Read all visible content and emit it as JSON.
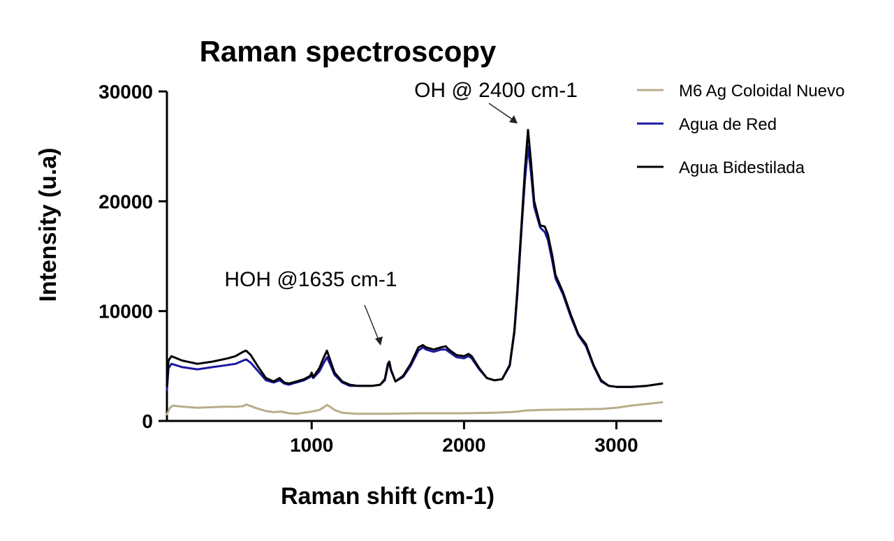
{
  "chart_data": {
    "type": "line",
    "title": "Raman spectroscopy",
    "xlabel": "Raman shift (cm-1)",
    "ylabel": "Intensity (u.a)",
    "xlim": [
      50,
      3300
    ],
    "ylim": [
      0,
      30000
    ],
    "xticks": [
      1000,
      2000,
      3000
    ],
    "xtick_labels": [
      "1000",
      "2000",
      "3000"
    ],
    "yticks": [
      0,
      10000,
      20000,
      30000
    ],
    "ytick_labels": [
      "0",
      "10000",
      "20000",
      "30000"
    ],
    "grid": false,
    "legend_position": "right",
    "series": [
      {
        "name": "M6 Ag Coloidal Nuevo",
        "color": "#b8ad8a",
        "x": [
          50,
          70,
          90,
          150,
          250,
          350,
          450,
          500,
          550,
          570,
          600,
          650,
          700,
          750,
          800,
          850,
          900,
          950,
          1000,
          1050,
          1080,
          1100,
          1120,
          1150,
          1200,
          1300,
          1500,
          1700,
          2000,
          2200,
          2300,
          2350,
          2400,
          2500,
          2700,
          2900,
          3000,
          3100,
          3200,
          3300
        ],
        "y": [
          600,
          1200,
          1400,
          1300,
          1200,
          1250,
          1300,
          1280,
          1350,
          1500,
          1350,
          1100,
          900,
          800,
          850,
          700,
          650,
          750,
          850,
          1000,
          1250,
          1450,
          1300,
          1000,
          750,
          650,
          650,
          700,
          700,
          750,
          800,
          850,
          950,
          1000,
          1050,
          1100,
          1200,
          1400,
          1550,
          1700
        ]
      },
      {
        "name": "Agua de Red",
        "color": "#1a1aa0",
        "x": [
          50,
          60,
          80,
          150,
          250,
          350,
          450,
          500,
          550,
          570,
          600,
          650,
          700,
          750,
          790,
          820,
          850,
          900,
          950,
          990,
          1000,
          1010,
          1050,
          1080,
          1100,
          1120,
          1150,
          1200,
          1250,
          1300,
          1400,
          1450,
          1480,
          1500,
          1510,
          1520,
          1550,
          1600,
          1650,
          1700,
          1730,
          1750,
          1800,
          1850,
          1880,
          1900,
          1950,
          2000,
          2030,
          2050,
          2100,
          2150,
          2200,
          2250,
          2300,
          2330,
          2350,
          2380,
          2400,
          2420,
          2440,
          2460,
          2500,
          2530,
          2550,
          2580,
          2600,
          2650,
          2700,
          2750,
          2800,
          2850,
          2900,
          2950,
          3000,
          3100,
          3200,
          3300
        ],
        "y": [
          2800,
          4800,
          5200,
          4900,
          4700,
          4900,
          5100,
          5200,
          5500,
          5600,
          5300,
          4500,
          3700,
          3500,
          3700,
          3400,
          3300,
          3500,
          3700,
          4000,
          4200,
          3900,
          4500,
          5300,
          5800,
          5200,
          4200,
          3500,
          3200,
          3200,
          3200,
          3300,
          3700,
          5000,
          5200,
          4600,
          3600,
          4000,
          5000,
          6400,
          6700,
          6500,
          6300,
          6500,
          6500,
          6300,
          5800,
          5700,
          5900,
          5700,
          4700,
          3900,
          3700,
          3800,
          5000,
          8000,
          11500,
          18000,
          22000,
          25000,
          22500,
          19500,
          17600,
          17200,
          16500,
          14500,
          13000,
          11500,
          9500,
          7800,
          6800,
          5000,
          3600,
          3200,
          3100,
          3100,
          3200,
          3400
        ]
      },
      {
        "name": "Agua Bidestilada",
        "color": "#000000",
        "x": [
          50,
          60,
          80,
          150,
          250,
          350,
          450,
          500,
          550,
          570,
          600,
          650,
          700,
          750,
          790,
          820,
          850,
          900,
          950,
          990,
          1000,
          1010,
          1050,
          1080,
          1100,
          1120,
          1150,
          1200,
          1250,
          1300,
          1400,
          1450,
          1480,
          1500,
          1510,
          1520,
          1550,
          1600,
          1650,
          1700,
          1730,
          1750,
          1800,
          1850,
          1880,
          1900,
          1950,
          2000,
          2030,
          2050,
          2100,
          2150,
          2200,
          2250,
          2300,
          2330,
          2350,
          2380,
          2400,
          2420,
          2440,
          2460,
          2500,
          2530,
          2550,
          2580,
          2600,
          2650,
          2700,
          2750,
          2800,
          2850,
          2900,
          2950,
          3000,
          3100,
          3200,
          3300
        ],
        "y": [
          3200,
          5500,
          5900,
          5500,
          5200,
          5400,
          5700,
          5900,
          6300,
          6400,
          6000,
          4900,
          3900,
          3600,
          3900,
          3500,
          3400,
          3600,
          3800,
          4100,
          4400,
          4000,
          4800,
          5800,
          6400,
          5600,
          4400,
          3600,
          3300,
          3200,
          3200,
          3300,
          3800,
          5200,
          5400,
          4700,
          3600,
          4100,
          5200,
          6700,
          6900,
          6700,
          6500,
          6700,
          6800,
          6500,
          6000,
          5900,
          6100,
          5900,
          4800,
          3900,
          3700,
          3800,
          5100,
          8200,
          12000,
          18500,
          23000,
          26500,
          23500,
          20000,
          17800,
          17700,
          17000,
          15000,
          13300,
          11700,
          9700,
          7900,
          7000,
          5100,
          3700,
          3200,
          3100,
          3100,
          3200,
          3400
        ]
      }
    ],
    "annotations": [
      {
        "text": "HOH @1635 cm-1"
      },
      {
        "text": "OH @ 2400 cm-1"
      }
    ]
  }
}
